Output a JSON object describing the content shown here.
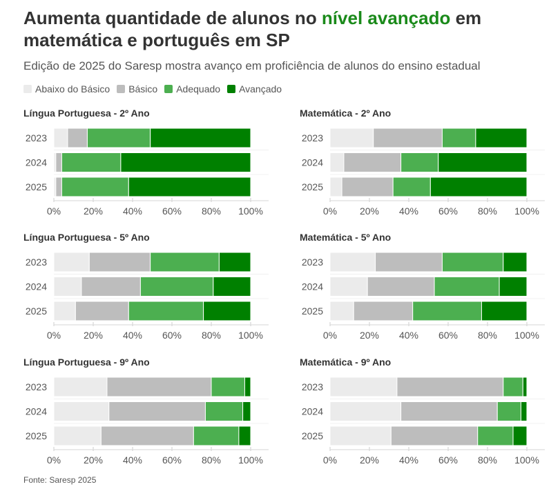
{
  "header": {
    "title_part1": "Aumenta quantidade de alunos no ",
    "title_highlight": "nível avançado",
    "title_part2": " em matemática e português em SP",
    "subtitle": "Edição de 2025 do Saresp mostra avanço em proficiência de alunos do ensino estadual"
  },
  "legend": [
    {
      "label": "Abaixo do Básico",
      "color": "#ebebeb"
    },
    {
      "label": "Básico",
      "color": "#bdbdbd"
    },
    {
      "label": "Adequado",
      "color": "#4caf50"
    },
    {
      "label": "Avançado",
      "color": "#008000"
    }
  ],
  "source": "Fonte: Saresp 2025",
  "chart_data": [
    {
      "type": "bar",
      "orientation": "horizontal",
      "stacked": true,
      "title": "Língua Portuguesa - 2º Ano",
      "categories": [
        "2023",
        "2024",
        "2025"
      ],
      "series": [
        {
          "name": "Abaixo do Básico",
          "values": [
            7,
            1,
            1
          ]
        },
        {
          "name": "Básico",
          "values": [
            10,
            3,
            3
          ]
        },
        {
          "name": "Adequado",
          "values": [
            32,
            30,
            34
          ]
        },
        {
          "name": "Avançado",
          "values": [
            51,
            66,
            62
          ]
        }
      ],
      "xlim": [
        0,
        100
      ],
      "ticks": [
        "0%",
        "20%",
        "40%",
        "60%",
        "80%",
        "100%"
      ]
    },
    {
      "type": "bar",
      "orientation": "horizontal",
      "stacked": true,
      "title": "Matemática - 2º Ano",
      "categories": [
        "2023",
        "2024",
        "2025"
      ],
      "series": [
        {
          "name": "Abaixo do Básico",
          "values": [
            22,
            7,
            6
          ]
        },
        {
          "name": "Básico",
          "values": [
            35,
            29,
            26
          ]
        },
        {
          "name": "Adequado",
          "values": [
            17,
            19,
            19
          ]
        },
        {
          "name": "Avançado",
          "values": [
            26,
            45,
            49
          ]
        }
      ],
      "xlim": [
        0,
        100
      ],
      "ticks": [
        "0%",
        "20%",
        "40%",
        "60%",
        "80%",
        "100%"
      ]
    },
    {
      "type": "bar",
      "orientation": "horizontal",
      "stacked": true,
      "title": "Língua Portuguesa - 5º Ano",
      "categories": [
        "2023",
        "2024",
        "2025"
      ],
      "series": [
        {
          "name": "Abaixo do Básico",
          "values": [
            18,
            14,
            11
          ]
        },
        {
          "name": "Básico",
          "values": [
            31,
            30,
            27
          ]
        },
        {
          "name": "Adequado",
          "values": [
            35,
            37,
            38
          ]
        },
        {
          "name": "Avançado",
          "values": [
            16,
            19,
            24
          ]
        }
      ],
      "xlim": [
        0,
        100
      ],
      "ticks": [
        "0%",
        "20%",
        "40%",
        "60%",
        "80%",
        "100%"
      ]
    },
    {
      "type": "bar",
      "orientation": "horizontal",
      "stacked": true,
      "title": "Matemática - 5º Ano",
      "categories": [
        "2023",
        "2024",
        "2025"
      ],
      "series": [
        {
          "name": "Abaixo do Básico",
          "values": [
            23,
            19,
            12
          ]
        },
        {
          "name": "Básico",
          "values": [
            34,
            34,
            30
          ]
        },
        {
          "name": "Adequado",
          "values": [
            31,
            33,
            35
          ]
        },
        {
          "name": "Avançado",
          "values": [
            12,
            14,
            23
          ]
        }
      ],
      "xlim": [
        0,
        100
      ],
      "ticks": [
        "0%",
        "20%",
        "40%",
        "60%",
        "80%",
        "100%"
      ]
    },
    {
      "type": "bar",
      "orientation": "horizontal",
      "stacked": true,
      "title": "Língua Portuguesa - 9º Ano",
      "categories": [
        "2023",
        "2024",
        "2025"
      ],
      "series": [
        {
          "name": "Abaixo do Básico",
          "values": [
            27,
            28,
            24
          ]
        },
        {
          "name": "Básico",
          "values": [
            53,
            49,
            47
          ]
        },
        {
          "name": "Adequado",
          "values": [
            17,
            19,
            23
          ]
        },
        {
          "name": "Avançado",
          "values": [
            3,
            4,
            6
          ]
        }
      ],
      "xlim": [
        0,
        100
      ],
      "ticks": [
        "0%",
        "20%",
        "40%",
        "60%",
        "80%",
        "100%"
      ]
    },
    {
      "type": "bar",
      "orientation": "horizontal",
      "stacked": true,
      "title": "Matemática - 9º Ano",
      "categories": [
        "2023",
        "2024",
        "2025"
      ],
      "series": [
        {
          "name": "Abaixo do Básico",
          "values": [
            34,
            36,
            31
          ]
        },
        {
          "name": "Básico",
          "values": [
            54,
            49,
            44
          ]
        },
        {
          "name": "Adequado",
          "values": [
            10,
            12,
            18
          ]
        },
        {
          "name": "Avançado",
          "values": [
            2,
            3,
            7
          ]
        }
      ],
      "xlim": [
        0,
        100
      ],
      "ticks": [
        "0%",
        "20%",
        "40%",
        "60%",
        "80%",
        "100%"
      ]
    }
  ]
}
